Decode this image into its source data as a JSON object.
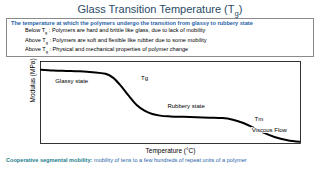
{
  "slide": {
    "title": "Glass Transition Temperature (Tg)",
    "definition": "The temperature at which the polymers undergo the transition from glassy to rubbery state",
    "points": [
      "Below Tg : Polymers are hard and brittle like glass, due to lack of mobility",
      "Above Tg : Polymers are soft and flexible like rubber due to some mobility",
      "Above Tg : Physical and mechanical properties of polymer change"
    ],
    "footer": {
      "term": "Cooperative segmental mobility:",
      "text": " mobility of tens to a few hundreds of repeat units of a polymer"
    }
  },
  "chart_data": {
    "type": "line",
    "x_label": "Temperature (°C)",
    "y_label": "Modulus (MPa)",
    "x": [
      0,
      5,
      10,
      15,
      20,
      25,
      28,
      31,
      34,
      37,
      40,
      43,
      46,
      50,
      55,
      60,
      65,
      70,
      74,
      78,
      82,
      86,
      90,
      95,
      100
    ],
    "values": [
      90,
      89,
      88.5,
      88,
      87,
      85,
      80,
      70,
      58,
      47,
      40,
      36,
      34,
      33,
      32.5,
      32,
      31.5,
      31,
      29,
      25,
      19,
      13,
      8,
      4,
      2
    ],
    "color": "#000000",
    "xlim": [
      0,
      100
    ],
    "ylim": [
      0,
      100
    ],
    "tick_labels": false,
    "annotations": [
      {
        "text": "Glassy state",
        "x": 12,
        "y": 76
      },
      {
        "text": "Tg",
        "x": 40,
        "y": 80
      },
      {
        "text": "Rubbery state",
        "x": 56,
        "y": 46
      },
      {
        "text": "Tm",
        "x": 84,
        "y": 30
      },
      {
        "text": "Viscous Flow",
        "x": 88,
        "y": 16
      }
    ]
  }
}
